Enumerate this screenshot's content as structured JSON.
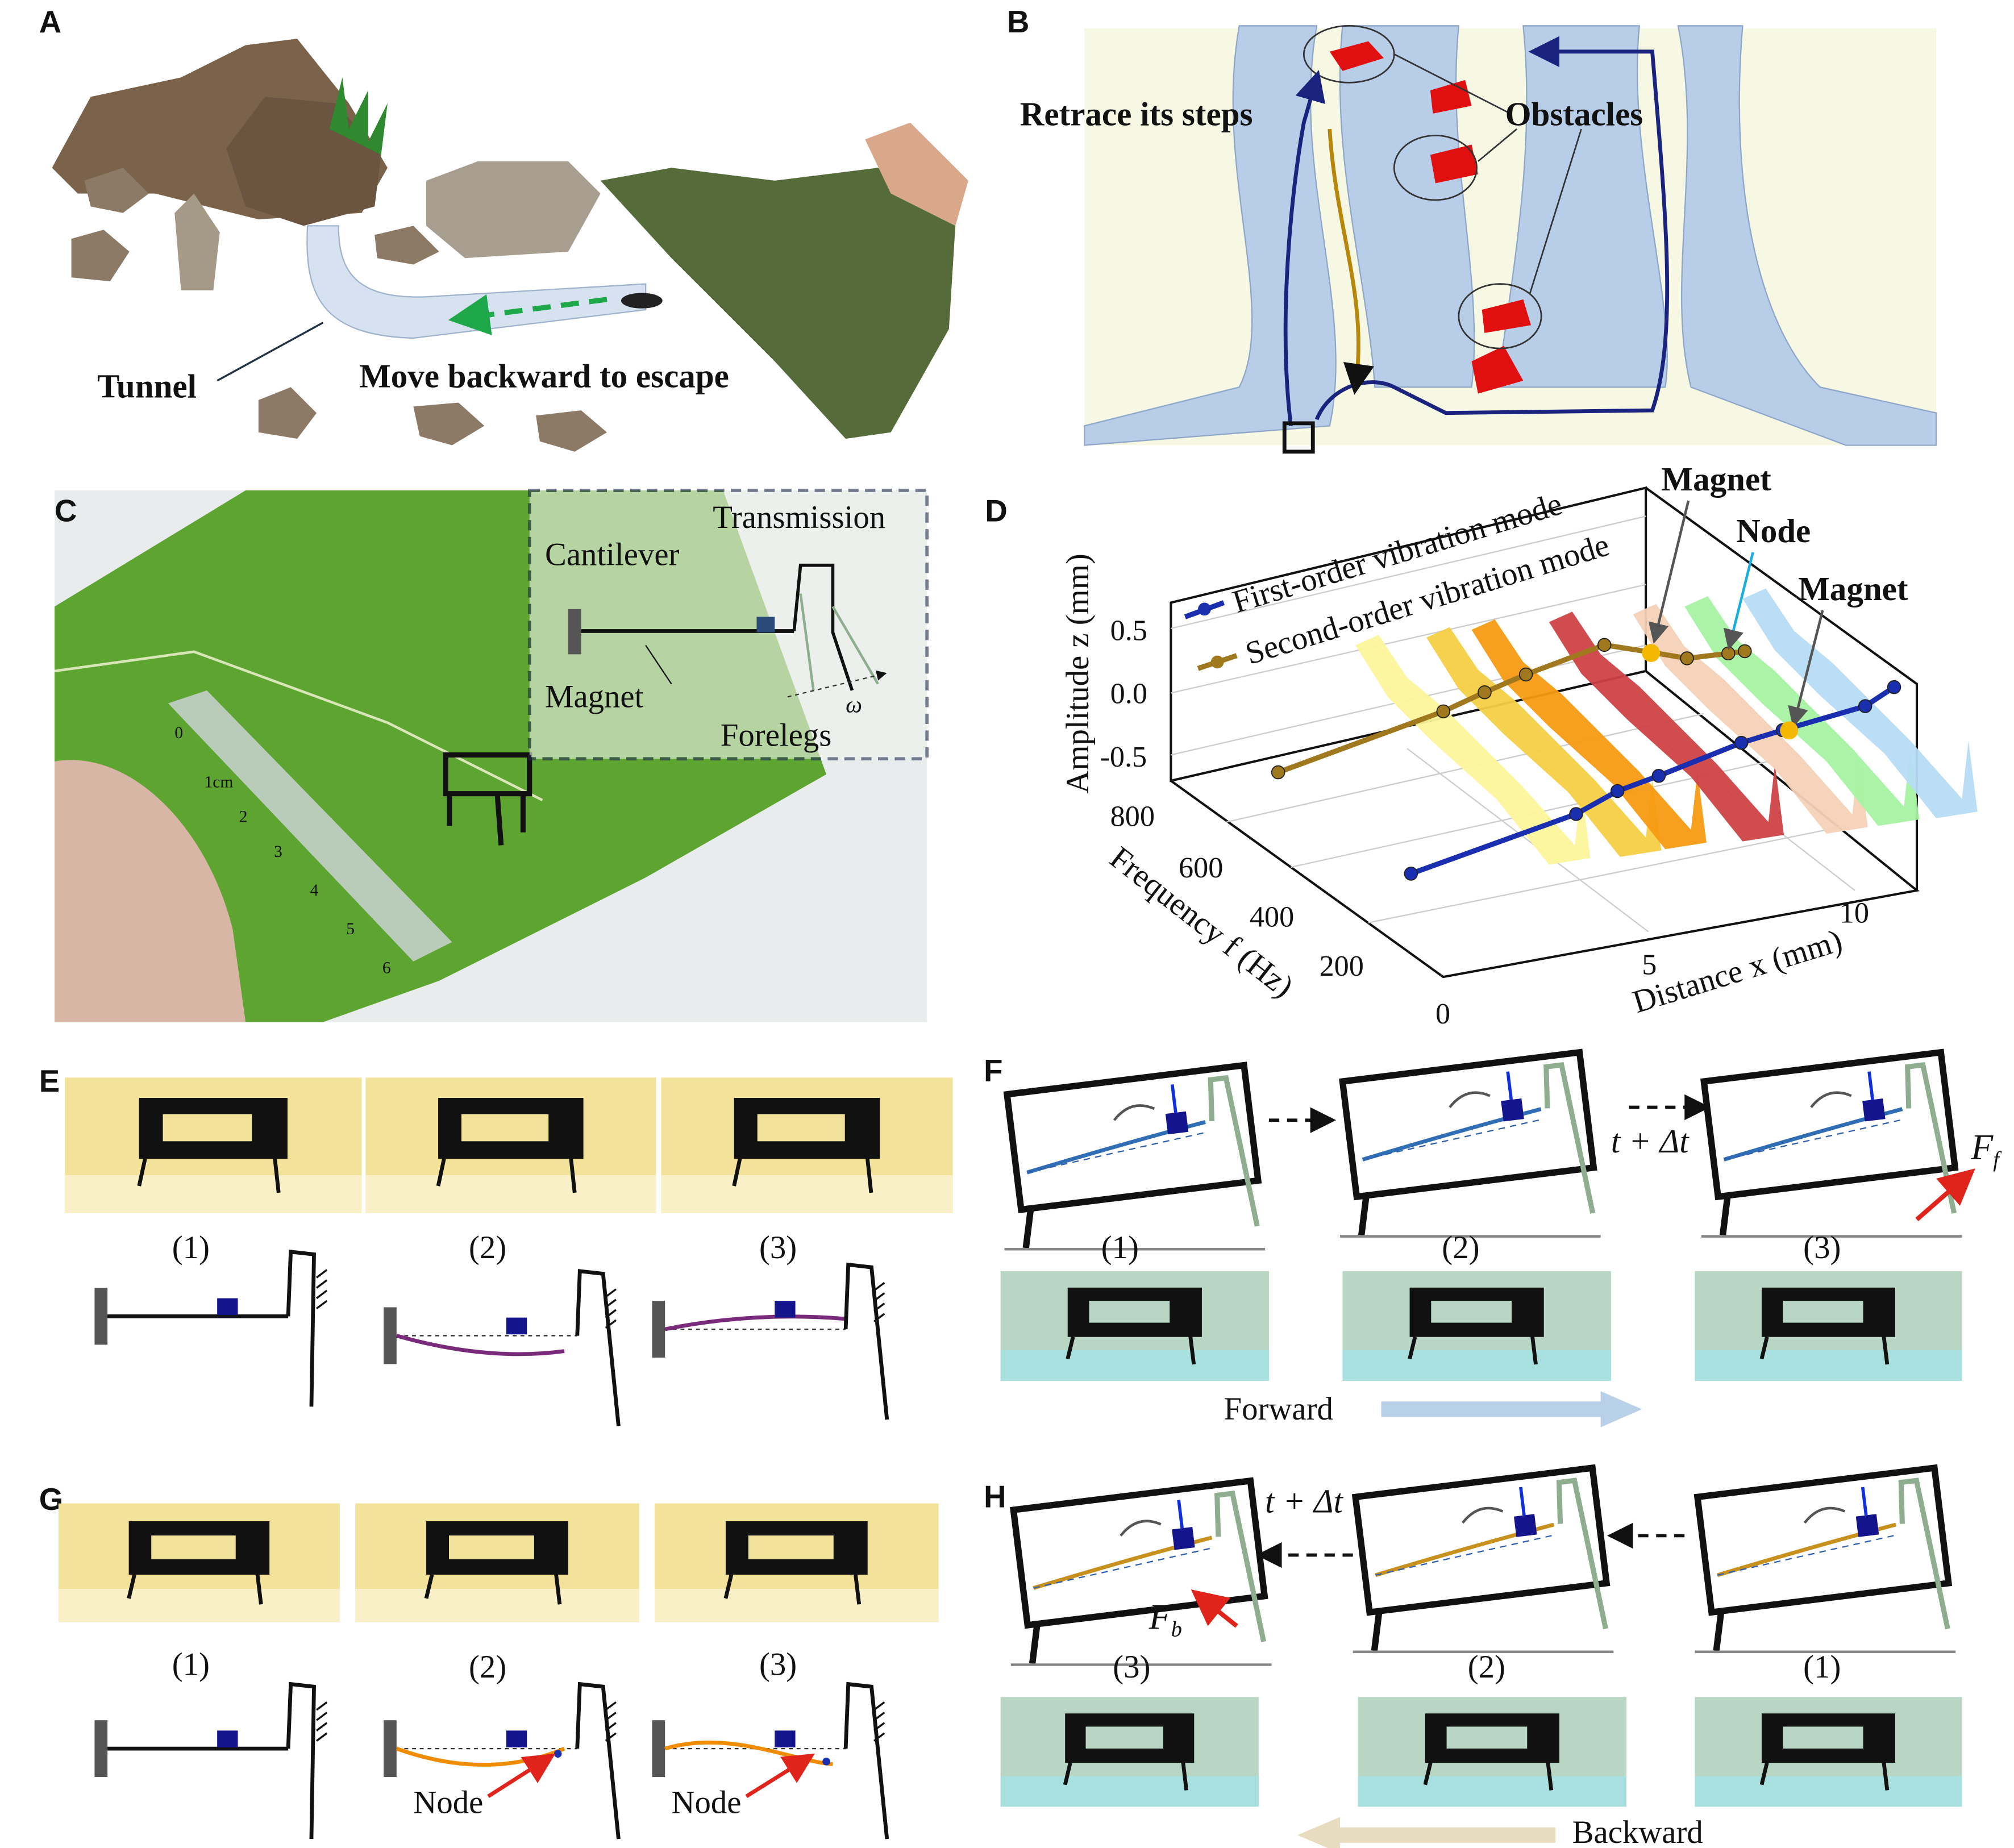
{
  "panel_letters": {
    "a": "A",
    "b": "B",
    "c": "C",
    "d": "D",
    "e": "E",
    "f": "F",
    "g": "G",
    "h": "H"
  },
  "panel_a": {
    "tunnel_label": "Tunnel",
    "escape_label": "Move backward to escape"
  },
  "panel_b": {
    "retrace_label": "Retrace its steps",
    "obstacles_label": "Obstacles"
  },
  "panel_c": {
    "transmission_label": "Transmission",
    "cantilever_label": "Cantilever",
    "magnet_label": "Magnet",
    "forelegs_label": "Forelegs",
    "omega_label": "ω",
    "ruler_marks": [
      "0",
      "1cm",
      "2",
      "3",
      "4",
      "5",
      "6"
    ]
  },
  "chart_data": {
    "type": "line",
    "projection": "3d",
    "xlabel": "Distance x (mm)",
    "ylabel": "Frequency f (Hz)",
    "zlabel": "Amplitude z (mm)",
    "x_ticks": [
      "0",
      "5",
      "10"
    ],
    "y_ticks": [
      "200",
      "400",
      "600",
      "800"
    ],
    "z_ticks": [
      "0.5",
      "0.0",
      "-0.5"
    ],
    "legend_placement": "top-left",
    "series": [
      {
        "name": "First-order vibration mode",
        "color": "#1a2fb0",
        "x": [
          0,
          4,
          5,
          6,
          8,
          9,
          11,
          11.7
        ],
        "z": [
          -0.08,
          0.11,
          0.22,
          0.27,
          0.39,
          0.42,
          0.47,
          0.57
        ]
      },
      {
        "name": "Second-order vibration mode",
        "color": "#a0781e",
        "x": [
          0.3,
          4.3,
          5.3,
          6.3,
          8.2,
          9.3,
          10.2,
          11.2,
          11.6
        ],
        "z": [
          -0.12,
          0.08,
          0.16,
          0.23,
          0.33,
          0.2,
          0.09,
          0.06,
          0.05
        ]
      }
    ],
    "annotations": [
      "Magnet",
      "Node",
      "Magnet"
    ],
    "spectrum_colors": [
      "#fbf59a",
      "#f6cf45",
      "#f79a12",
      "#cd4245",
      "#f6d2b8",
      "#a7f3a2",
      "#b6dcf4"
    ]
  },
  "panel_e": {
    "steps": [
      "(1)",
      "(2)",
      "(3)"
    ]
  },
  "panel_f": {
    "steps": [
      "(1)",
      "(2)",
      "(3)"
    ],
    "time_label": "t + Δt",
    "force_label": "F",
    "force_sub": "f",
    "direction_label": "Forward"
  },
  "panel_g": {
    "steps": [
      "(1)",
      "(2)",
      "(3)"
    ],
    "node_label": "Node"
  },
  "panel_h": {
    "steps": [
      "(3)",
      "(2)",
      "(1)"
    ],
    "time_label": "t + Δt",
    "force_label": "F",
    "force_sub": "b",
    "direction_label": "Backward"
  },
  "colors": {
    "cantilever_first": "#2f6db5",
    "cantilever_second": "#c8901c",
    "magnet": "#14148c",
    "foreleg": "#8fae8f",
    "force": "#e0241c",
    "path_blue": "#1a237e",
    "path_gold": "#b8860b",
    "wall": "#b8cde8",
    "obstacle": "#e01010"
  }
}
